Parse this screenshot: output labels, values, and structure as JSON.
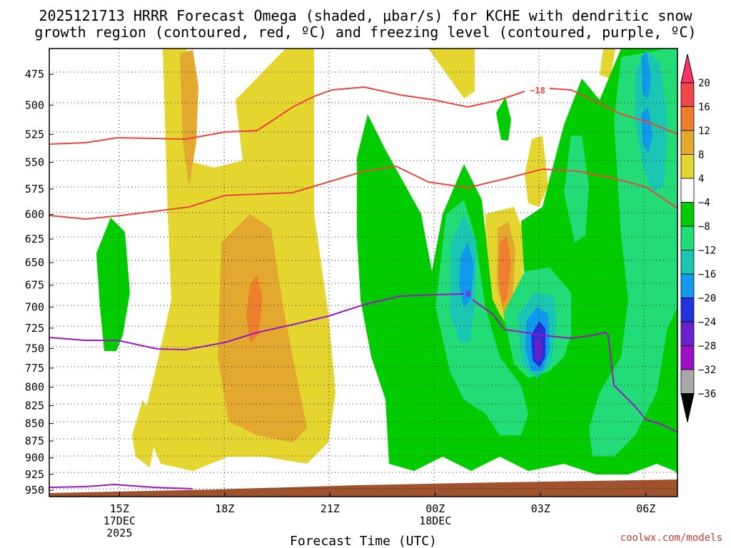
{
  "chart_data": {
    "type": "heatmap",
    "title_line1": "2025121713 HRRR Forecast Omega (shaded, μbar/s) for KCHE with dendritic snow",
    "title_line2": "growth region (contoured, red, ºC) and freezing level (contoured, purple, ºC)",
    "xlabel": "Forecast Time (UTC)",
    "credit": "coolwx.com/models",
    "y_axis": {
      "label": "",
      "scale": "pressure (hPa), decreasing upward",
      "ylim": [
        960,
        455
      ],
      "ticks": [
        "475",
        "500",
        "525",
        "550",
        "575",
        "600",
        "625",
        "650",
        "675",
        "700",
        "725",
        "750",
        "775",
        "800",
        "825",
        "850",
        "875",
        "900",
        "925",
        "950"
      ]
    },
    "x_axis": {
      "ticks": [
        {
          "hour_from_15Z": 0,
          "lines": [
            "15Z",
            "17DEC",
            "2025"
          ]
        },
        {
          "hour_from_15Z": 3,
          "lines": [
            "18Z"
          ]
        },
        {
          "hour_from_15Z": 6,
          "lines": [
            "21Z"
          ]
        },
        {
          "hour_from_15Z": 9,
          "lines": [
            "00Z",
            "18DEC"
          ]
        },
        {
          "hour_from_15Z": 12,
          "lines": [
            "03Z"
          ]
        },
        {
          "hour_from_15Z": 15,
          "lines": [
            "06Z"
          ]
        }
      ],
      "xlim_hours_from_15Z": [
        -2,
        15.9
      ]
    },
    "colorbar": {
      "labels": [
        "20",
        "16",
        "12",
        "8",
        "4",
        "−4",
        "−8",
        "−12",
        "−16",
        "−20",
        "−24",
        "−28",
        "−32",
        "−36"
      ],
      "colors": [
        "#ff3366",
        "#ef4747",
        "#ed7f2e",
        "#e3a82e",
        "#e5d52f",
        "#ffffff",
        "#00cc00",
        "#22dd77",
        "#19c6b1",
        "#1199ee",
        "#2233dd",
        "#6a22cc",
        "#9c0fc4",
        "#a8a8a8",
        "#000000"
      ]
    },
    "contours": [
      {
        "name": "-18",
        "color": "#e8473a",
        "label": "−18"
      },
      {
        "name": "freezing",
        "color": "#9918c4",
        "label": "0"
      }
    ]
  }
}
